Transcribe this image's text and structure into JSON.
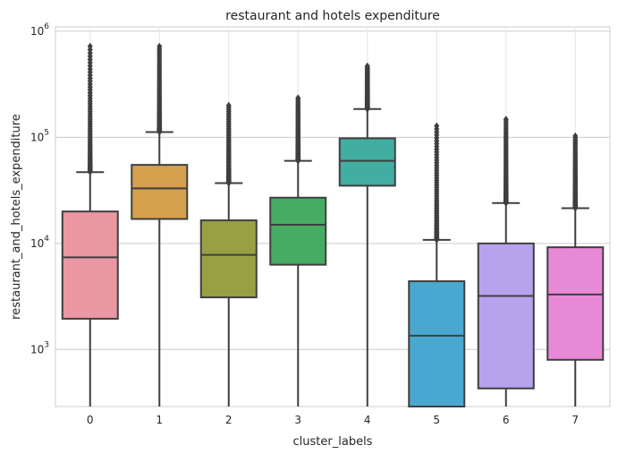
{
  "chart_data": {
    "type": "box",
    "title": "restaurant and hotels expenditure",
    "xlabel": "cluster_labels",
    "ylabel": "restaurant_and_hotels_expenditure",
    "yscale": "log",
    "ylim": [
      290,
      1100000
    ],
    "yticks": [
      {
        "value": 1000,
        "base": "10",
        "exp": "3"
      },
      {
        "value": 10000,
        "base": "10",
        "exp": "4"
      },
      {
        "value": 100000,
        "base": "10",
        "exp": "5"
      },
      {
        "value": 1000000,
        "base": "10",
        "exp": "6"
      }
    ],
    "grid": true,
    "categories": [
      "0",
      "1",
      "2",
      "3",
      "4",
      "5",
      "6",
      "7"
    ],
    "boxes": [
      {
        "label": "0",
        "color": "#ea96a3",
        "whislo": 290,
        "q1": 1950,
        "median": 7400,
        "q3": 20000,
        "whishi": 47000,
        "fliers_min": 47000,
        "fliers_max": 720000
      },
      {
        "label": "1",
        "color": "#d5a14f",
        "whislo": 290,
        "q1": 17000,
        "median": 33000,
        "q3": 55000,
        "whishi": 112000,
        "fliers_min": 112000,
        "fliers_max": 720000
      },
      {
        "label": "2",
        "color": "#99a043",
        "whislo": 290,
        "q1": 3100,
        "median": 7800,
        "q3": 16500,
        "whishi": 37000,
        "fliers_min": 37000,
        "fliers_max": 200000
      },
      {
        "label": "3",
        "color": "#46ac63",
        "whislo": 290,
        "q1": 6300,
        "median": 15000,
        "q3": 27000,
        "whishi": 60000,
        "fliers_min": 60000,
        "fliers_max": 235000
      },
      {
        "label": "4",
        "color": "#42ada1",
        "whislo": 290,
        "q1": 35000,
        "median": 60000,
        "q3": 98000,
        "whishi": 185000,
        "fliers_min": 185000,
        "fliers_max": 470000
      },
      {
        "label": "5",
        "color": "#4aa8d0",
        "whislo": 290,
        "q1": 290,
        "median": 1350,
        "q3": 4400,
        "whishi": 10800,
        "fliers_min": 10800,
        "fliers_max": 128000
      },
      {
        "label": "6",
        "color": "#b5a3ee",
        "whislo": 290,
        "q1": 430,
        "median": 3200,
        "q3": 10000,
        "whishi": 24000,
        "fliers_min": 24000,
        "fliers_max": 148000
      },
      {
        "label": "7",
        "color": "#e889d7",
        "whislo": 290,
        "q1": 800,
        "median": 3300,
        "q3": 9200,
        "whishi": 21500,
        "fliers_min": 21500,
        "fliers_max": 103000
      }
    ]
  }
}
